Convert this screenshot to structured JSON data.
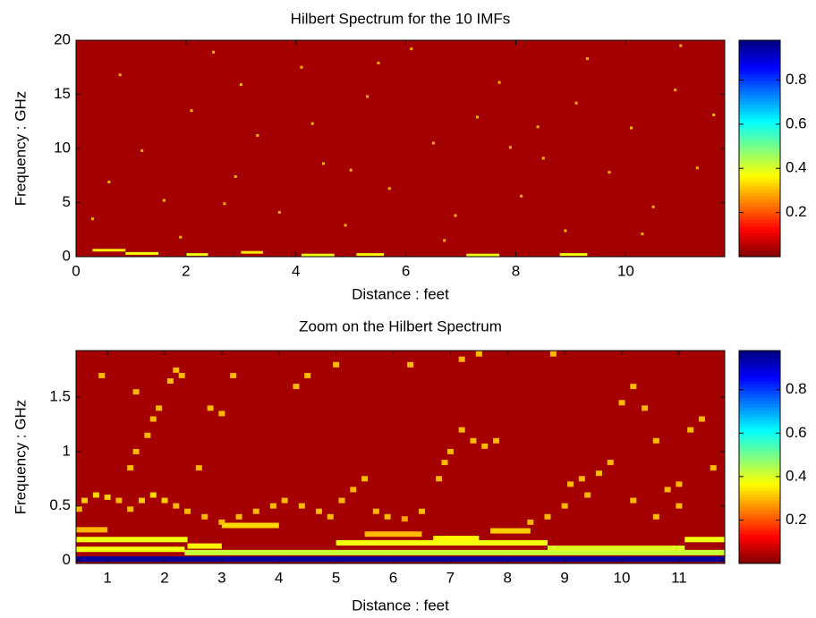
{
  "chart_data": [
    {
      "type": "heatmap",
      "title": "Hilbert Spectrum for the 10 IMFs",
      "xlabel": "Distance : feet",
      "ylabel": "Frequency : GHz",
      "xlim": [
        0,
        11.8
      ],
      "ylim": [
        0,
        20
      ],
      "xticks": [
        0,
        2,
        4,
        6,
        8,
        10
      ],
      "yticks": [
        0,
        5,
        10,
        15,
        20
      ],
      "clim": [
        0,
        0.98
      ],
      "cticks": [
        0.2,
        0.4,
        0.6,
        0.8
      ],
      "background": "#a50000",
      "points": {
        "x": [
          0.3,
          0.8,
          1.2,
          1.6,
          2.1,
          2.5,
          2.9,
          3.3,
          3.7,
          4.1,
          4.5,
          4.9,
          5.3,
          5.7,
          6.1,
          6.5,
          6.9,
          7.3,
          7.7,
          8.1,
          8.5,
          8.9,
          9.3,
          9.7,
          10.1,
          10.5,
          10.9,
          11.3,
          11.6,
          0.6,
          1.9,
          3.0,
          4.3,
          5.5,
          6.7,
          7.9,
          9.1,
          10.3,
          11.0,
          2.7,
          5.0,
          8.4
        ],
        "y": [
          3.5,
          16.8,
          9.8,
          5.2,
          13.5,
          18.9,
          7.4,
          11.2,
          4.1,
          17.5,
          8.6,
          2.9,
          14.8,
          6.3,
          19.2,
          10.5,
          3.8,
          12.9,
          16.1,
          5.6,
          9.1,
          2.4,
          18.3,
          7.8,
          11.9,
          4.6,
          15.4,
          8.2,
          13.1,
          6.9,
          1.8,
          15.9,
          12.3,
          17.9,
          1.5,
          10.1,
          14.2,
          2.1,
          19.5,
          4.9,
          8.0,
          12.0
        ],
        "values": [
          0.3,
          0.3,
          0.3,
          0.3,
          0.3,
          0.3,
          0.3,
          0.3,
          0.3,
          0.3,
          0.3,
          0.3,
          0.3,
          0.3,
          0.3,
          0.3,
          0.3,
          0.3,
          0.3,
          0.3,
          0.3,
          0.3,
          0.3,
          0.3,
          0.3,
          0.3,
          0.3,
          0.3,
          0.3,
          0.3,
          0.3,
          0.3,
          0.3,
          0.3,
          0.3,
          0.3,
          0.3,
          0.3,
          0.3,
          0.3,
          0.3,
          0.3
        ]
      },
      "bands": {
        "x_start": [
          0.3,
          0.9,
          2.0,
          3.0,
          4.1,
          5.1,
          7.1,
          8.8
        ],
        "x_end": [
          0.9,
          1.5,
          2.4,
          3.4,
          4.7,
          5.6,
          7.7,
          9.3
        ],
        "y": [
          0.6,
          0.3,
          0.2,
          0.4,
          0.15,
          0.2,
          0.15,
          0.2
        ],
        "values": [
          0.35,
          0.38,
          0.38,
          0.35,
          0.38,
          0.36,
          0.38,
          0.38
        ]
      }
    },
    {
      "type": "heatmap",
      "title": "Zoom on the Hilbert Spectrum",
      "xlabel": "Distance : feet",
      "ylabel": "Frequency : GHz",
      "xlim": [
        0.45,
        11.8
      ],
      "ylim": [
        -0.03,
        1.93
      ],
      "xticks": [
        1,
        2,
        3,
        4,
        5,
        6,
        7,
        8,
        9,
        10,
        11
      ],
      "yticks": [
        0,
        0.5,
        1,
        1.5
      ],
      "clim": [
        0,
        0.98
      ],
      "cticks": [
        0.2,
        0.4,
        0.6,
        0.8
      ],
      "background": "#a50000",
      "points": {
        "x": [
          0.5,
          0.6,
          0.8,
          1.0,
          1.2,
          1.4,
          1.6,
          1.8,
          2.0,
          2.2,
          2.4,
          2.7,
          3.0,
          3.3,
          3.6,
          3.9,
          4.1,
          4.4,
          4.7,
          4.9,
          5.1,
          5.3,
          5.5,
          5.7,
          5.9,
          6.2,
          6.5,
          6.8,
          6.9,
          7.0,
          7.2,
          7.4,
          7.6,
          7.8,
          1.4,
          1.5,
          1.7,
          1.8,
          1.9,
          2.1,
          2.2,
          2.3,
          2.6,
          2.8,
          3.0,
          3.2,
          0.9,
          1.5,
          4.3,
          4.5,
          5.0,
          6.3,
          7.2,
          7.5,
          8.8,
          9.1,
          9.3,
          9.6,
          9.8,
          10.0,
          10.2,
          10.4,
          10.6,
          10.8,
          11.0,
          11.2,
          11.4,
          11.6,
          8.4,
          8.7,
          9.0,
          9.4,
          10.2,
          10.6,
          11.0
        ],
        "y": [
          0.47,
          0.55,
          0.6,
          0.58,
          0.55,
          0.47,
          0.55,
          0.6,
          0.55,
          0.5,
          0.45,
          0.4,
          0.35,
          0.4,
          0.45,
          0.5,
          0.55,
          0.5,
          0.45,
          0.4,
          0.55,
          0.65,
          0.75,
          0.45,
          0.4,
          0.38,
          0.45,
          0.75,
          0.9,
          1.0,
          1.2,
          1.1,
          1.05,
          1.1,
          0.85,
          1.0,
          1.15,
          1.3,
          1.4,
          1.65,
          1.75,
          1.7,
          0.85,
          1.4,
          1.35,
          1.7,
          1.7,
          1.55,
          1.6,
          1.7,
          1.8,
          1.8,
          1.85,
          1.9,
          1.9,
          0.7,
          0.75,
          0.8,
          0.9,
          1.45,
          1.6,
          1.4,
          1.1,
          0.65,
          0.7,
          1.2,
          1.3,
          0.85,
          0.35,
          0.4,
          0.5,
          0.6,
          0.55,
          0.4,
          0.5
        ],
        "values": [
          0.3,
          0.32,
          0.33,
          0.32,
          0.3,
          0.3,
          0.32,
          0.33,
          0.32,
          0.3,
          0.3,
          0.3,
          0.3,
          0.3,
          0.3,
          0.3,
          0.3,
          0.3,
          0.3,
          0.3,
          0.3,
          0.3,
          0.3,
          0.3,
          0.3,
          0.28,
          0.3,
          0.3,
          0.3,
          0.3,
          0.3,
          0.3,
          0.3,
          0.3,
          0.3,
          0.3,
          0.3,
          0.3,
          0.3,
          0.3,
          0.3,
          0.3,
          0.3,
          0.3,
          0.3,
          0.3,
          0.3,
          0.3,
          0.3,
          0.3,
          0.3,
          0.3,
          0.3,
          0.3,
          0.3,
          0.3,
          0.3,
          0.3,
          0.3,
          0.3,
          0.3,
          0.3,
          0.3,
          0.3,
          0.3,
          0.3,
          0.3,
          0.3,
          0.3,
          0.3,
          0.3,
          0.3,
          0.3,
          0.3,
          0.3
        ]
      },
      "bands": {
        "x_start": [
          0.45,
          2.35,
          0.45,
          0.45,
          5.0,
          8.7,
          11.1,
          0.45,
          2.4,
          3.0,
          5.5,
          6.7,
          7.7
        ],
        "x_end": [
          11.8,
          11.8,
          2.35,
          2.4,
          8.7,
          11.1,
          11.8,
          1.0,
          3.0,
          4.0,
          6.5,
          7.5,
          8.4
        ],
        "y": [
          0.01,
          0.07,
          0.1,
          0.19,
          0.16,
          0.11,
          0.19,
          0.28,
          0.13,
          0.32,
          0.24,
          0.2,
          0.27
        ],
        "values": [
          0.95,
          0.42,
          0.38,
          0.38,
          0.38,
          0.4,
          0.38,
          0.3,
          0.36,
          0.33,
          0.3,
          0.36,
          0.32
        ]
      }
    }
  ]
}
